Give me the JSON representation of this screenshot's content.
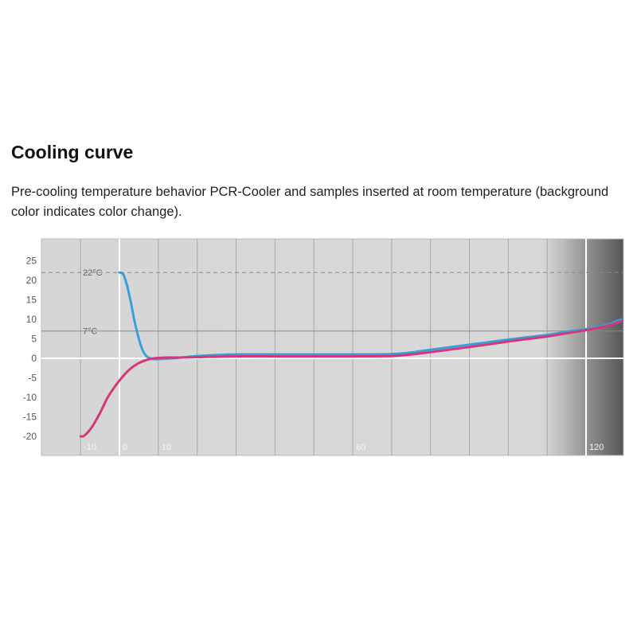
{
  "header": {
    "title": "Cooling curve",
    "description": "Pre-cooling temperature behavior PCR-Cooler and samples inserted at room temperature (background color indicates color change)."
  },
  "chart_data": {
    "type": "line",
    "title": "",
    "xlabel": "",
    "ylabel": "",
    "xlim": [
      -15,
      130
    ],
    "ylim": [
      -23,
      31
    ],
    "x_tick_labels": [
      {
        "x": -10,
        "label": "-10"
      },
      {
        "x": 0,
        "label": "0"
      },
      {
        "x": 10,
        "label": "10"
      },
      {
        "x": 60,
        "label": "60"
      },
      {
        "x": 120,
        "label": "120"
      }
    ],
    "y_ticks": [
      25,
      20,
      15,
      10,
      5,
      0,
      -5,
      -10,
      -15,
      -20
    ],
    "reference_lines": [
      {
        "y": 22,
        "label": "22°C",
        "style": "dashed",
        "color": "#8a8a8a"
      },
      {
        "y": 7,
        "label": "7°C",
        "style": "solid",
        "color": "#8a8a8a"
      }
    ],
    "grid": true,
    "background_colors": {
      "light": "#d9d9d9",
      "dark": "#585858"
    },
    "series": [
      {
        "name": "",
        "color": "#3a9fd8",
        "x": [
          0,
          1,
          2,
          3,
          4,
          5,
          6,
          7,
          8,
          9,
          10,
          15,
          20,
          30,
          40,
          50,
          60,
          70,
          75,
          80,
          90,
          100,
          110,
          115,
          120,
          125,
          129
        ],
        "y": [
          22,
          21.5,
          18.5,
          14,
          9,
          5,
          2,
          0.5,
          0,
          -0.2,
          -0.2,
          0.1,
          0.6,
          1,
          1,
          1,
          1,
          1.1,
          1.5,
          2.2,
          3.5,
          4.8,
          6,
          6.8,
          7.5,
          8.5,
          10
        ]
      },
      {
        "name": "",
        "color": "#d8357a",
        "x": [
          -10,
          -9,
          -7,
          -5,
          -3,
          -1,
          1,
          3,
          5,
          7,
          9,
          10,
          12,
          15,
          20,
          30,
          40,
          50,
          60,
          70,
          75,
          80,
          90,
          100,
          110,
          115,
          120,
          125,
          129
        ],
        "y": [
          -20,
          -19.8,
          -17.5,
          -14,
          -10,
          -7,
          -4.5,
          -2.5,
          -1.2,
          -0.4,
          0,
          0.1,
          0.2,
          0.2,
          0.3,
          0.5,
          0.5,
          0.5,
          0.5,
          0.6,
          1,
          1.6,
          2.9,
          4.3,
          5.6,
          6.4,
          7.2,
          8.2,
          9.5
        ]
      }
    ]
  }
}
